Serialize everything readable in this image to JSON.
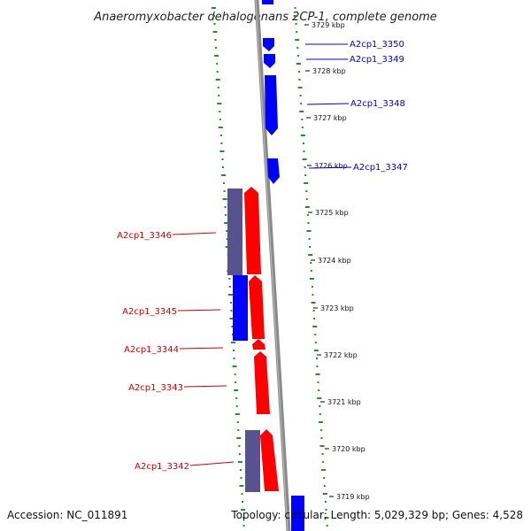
{
  "title": "Anaeromyxobacter dehalogenans 2CP-1, complete genome",
  "accession": "Accession: NC_011891",
  "topology": "Topology: circular; Length: 5,029,329 bp; Genes: 4,528",
  "colors": {
    "forward_gene": "#ff0000",
    "reverse_gene": "#0000ff",
    "cds_forward": "#575390",
    "cds_reverse": "#0000ff",
    "backbone": "#888888",
    "dots": "#2a8a2a",
    "red_label": "#cc0000",
    "blue_label": "#0000cc"
  },
  "ticks": [
    {
      "label": "3729 kbp"
    },
    {
      "label": "3728 kbp"
    },
    {
      "label": "3727 kbp"
    },
    {
      "label": "3726 kbp"
    },
    {
      "label": "3725 kbp"
    },
    {
      "label": "3724 kbp"
    },
    {
      "label": "3723 kbp"
    },
    {
      "label": "3722 kbp"
    },
    {
      "label": "3721 kbp"
    },
    {
      "label": "3720 kbp"
    },
    {
      "label": "3719 kbp"
    }
  ],
  "genes_right": [
    {
      "label": "A2cp1_3350"
    },
    {
      "label": "A2cp1_3349"
    },
    {
      "label": "A2cp1_3348"
    },
    {
      "label": "A2cp1_3347"
    }
  ],
  "genes_left": [
    {
      "label": "A2cp1_3346"
    },
    {
      "label": "A2cp1_3345"
    },
    {
      "label": "A2cp1_3344"
    },
    {
      "label": "A2cp1_3343"
    },
    {
      "label": "A2cp1_3342"
    }
  ]
}
